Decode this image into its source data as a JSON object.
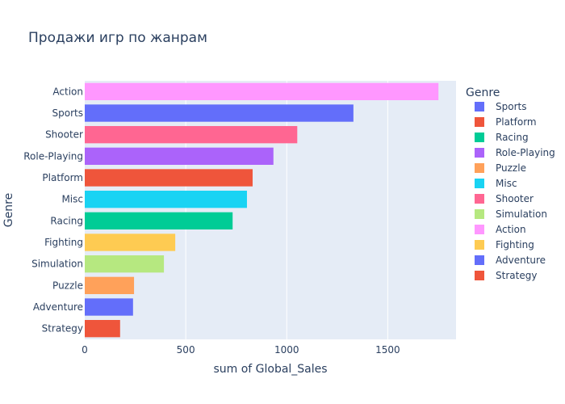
{
  "chart_data": {
    "type": "bar",
    "orientation": "horizontal",
    "title": "Продажи игр по жанрам",
    "xlabel": "sum of Global_Sales",
    "ylabel": "Genre",
    "xlim": [
      0,
      1838
    ],
    "xticks": [
      0,
      500,
      1000,
      1500
    ],
    "grid": true,
    "legend_title": "Genre",
    "legend_position": "right",
    "plot_bgcolor": "#e5ecf6",
    "categories": [
      "Action",
      "Sports",
      "Shooter",
      "Role-Playing",
      "Platform",
      "Misc",
      "Racing",
      "Fighting",
      "Simulation",
      "Puzzle",
      "Adventure",
      "Strategy"
    ],
    "values": [
      1751,
      1330,
      1052,
      934,
      831,
      803,
      732,
      448,
      392,
      244,
      239,
      175
    ],
    "bar_colors": [
      "#FF97FF",
      "#636EFA",
      "#FF6692",
      "#AB63FA",
      "#EF553B",
      "#19D3F3",
      "#00CC96",
      "#FECB52",
      "#B6E880",
      "#FFA15A",
      "#636EFA",
      "#EF553B"
    ],
    "legend": [
      {
        "name": "Sports",
        "color": "#636EFA"
      },
      {
        "name": "Platform",
        "color": "#EF553B"
      },
      {
        "name": "Racing",
        "color": "#00CC96"
      },
      {
        "name": "Role-Playing",
        "color": "#AB63FA"
      },
      {
        "name": "Puzzle",
        "color": "#FFA15A"
      },
      {
        "name": "Misc",
        "color": "#19D3F3"
      },
      {
        "name": "Shooter",
        "color": "#FF6692"
      },
      {
        "name": "Simulation",
        "color": "#B6E880"
      },
      {
        "name": "Action",
        "color": "#FF97FF"
      },
      {
        "name": "Fighting",
        "color": "#FECB52"
      },
      {
        "name": "Adventure",
        "color": "#636EFA"
      },
      {
        "name": "Strategy",
        "color": "#EF553B"
      }
    ]
  }
}
